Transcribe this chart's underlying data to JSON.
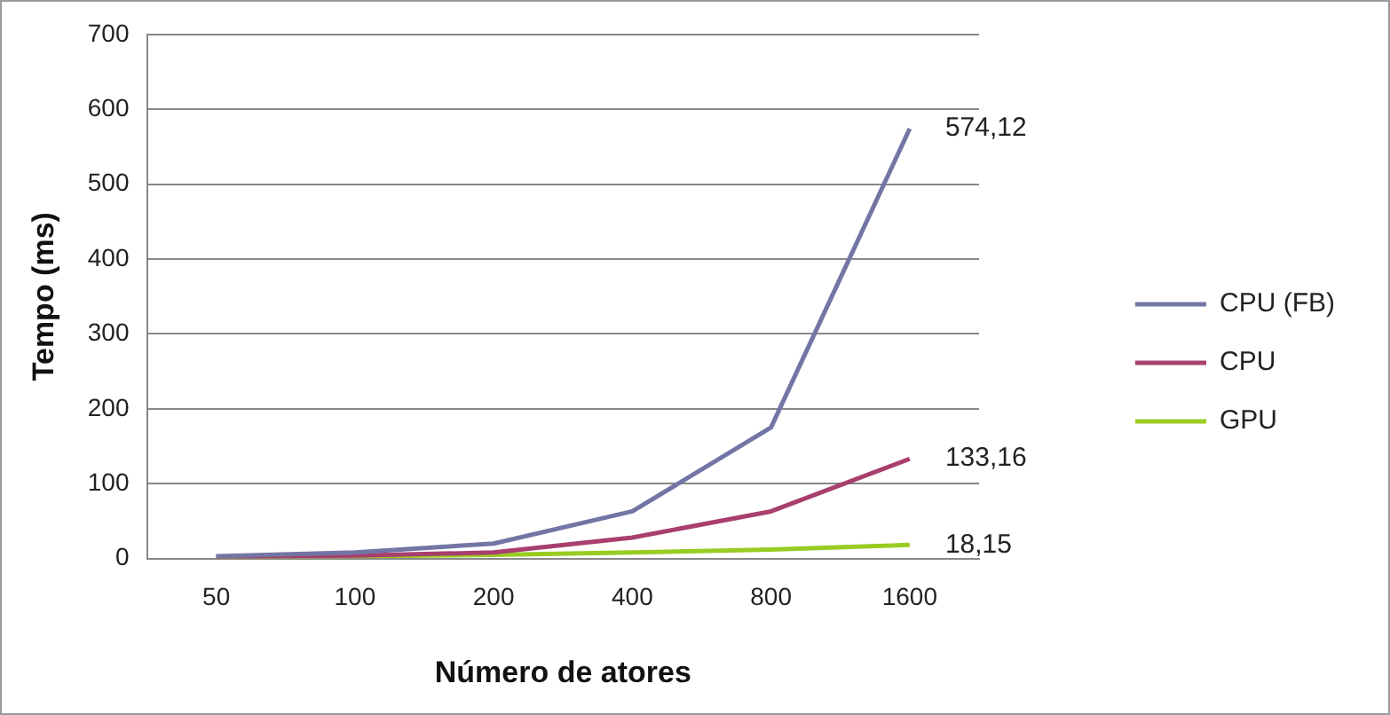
{
  "chart_data": {
    "type": "line",
    "xlabel": "Número de atores",
    "ylabel": "Tempo (ms)",
    "categories": [
      "50",
      "100",
      "200",
      "400",
      "800",
      "1600"
    ],
    "series": [
      {
        "name": "CPU (FB)",
        "color": "#7375a5",
        "values": [
          3,
          8,
          20,
          63,
          175,
          574.12
        ],
        "value_labels": [
          null,
          null,
          null,
          null,
          null,
          "574,12"
        ]
      },
      {
        "name": "CPU",
        "color": "#a83f6d",
        "values": [
          2,
          4,
          8,
          28,
          63,
          133.16
        ],
        "value_labels": [
          null,
          null,
          null,
          null,
          null,
          "133,16"
        ]
      },
      {
        "name": "GPU",
        "color": "#99cc22",
        "values": [
          2,
          3,
          5,
          8,
          12,
          18.15
        ],
        "value_labels": [
          null,
          null,
          null,
          null,
          null,
          "18,15"
        ]
      }
    ],
    "ylim": [
      0,
      700
    ],
    "yticks": [
      0,
      100,
      200,
      300,
      400,
      500,
      600,
      700
    ],
    "grid": "y",
    "legend": "right",
    "marker": "none",
    "line_style": "solid"
  }
}
